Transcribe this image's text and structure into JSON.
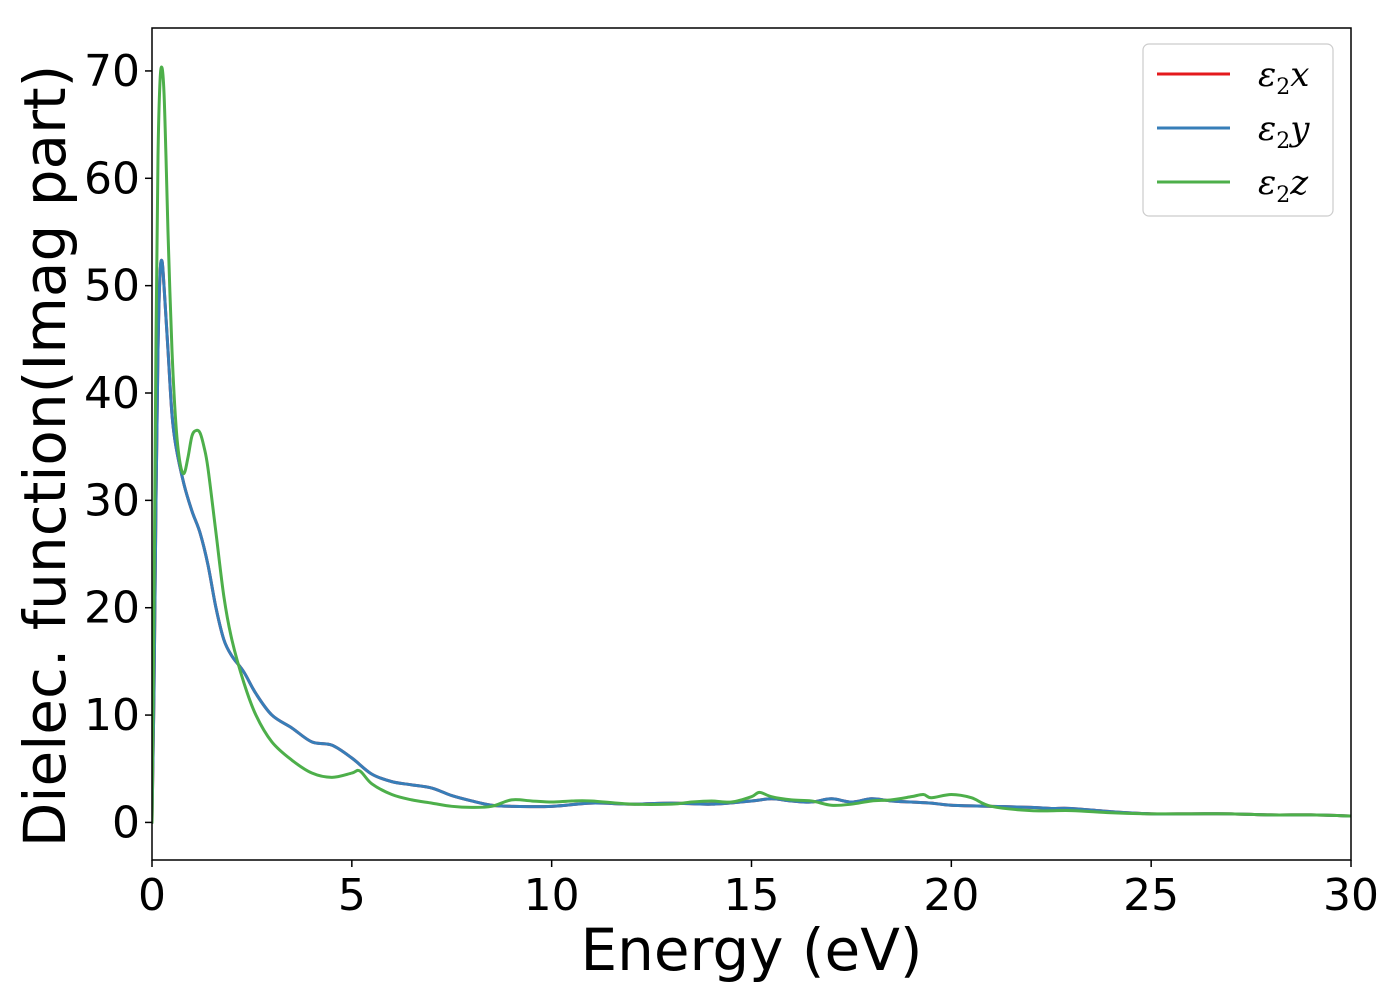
{
  "chart_data": {
    "type": "line",
    "title": "",
    "xlabel": "Energy (eV)",
    "ylabel": "Dielec. function(Imag part)",
    "xlim": [
      0,
      30
    ],
    "ylim": [
      -3.5,
      74
    ],
    "xticks": [
      0,
      5,
      10,
      15,
      20,
      25,
      30
    ],
    "yticks": [
      0,
      10,
      20,
      30,
      40,
      50,
      60,
      70
    ],
    "grid": false,
    "legend_position": "top-right",
    "series": [
      {
        "name": "ε2x",
        "legend": {
          "symbol": "ε",
          "sub": "2",
          "axis": "x"
        },
        "color": "#e41a1c",
        "x": [
          0,
          0.05,
          0.1,
          0.15,
          0.2,
          0.25,
          0.3,
          0.4,
          0.5,
          0.6,
          0.8,
          1.0,
          1.2,
          1.4,
          1.6,
          1.8,
          2.0,
          2.3,
          2.6,
          3.0,
          3.5,
          4.0,
          4.5,
          5.0,
          5.5,
          6.0,
          6.5,
          7.0,
          7.5,
          8.0,
          8.5,
          9.0,
          10.0,
          11.0,
          12.0,
          13.0,
          14.0,
          15.0,
          15.5,
          16.0,
          16.5,
          17.0,
          17.5,
          18.0,
          18.5,
          19.0,
          19.5,
          20.0,
          21.0,
          22.0,
          22.5,
          23.0,
          24.0,
          25.0,
          26.0,
          27.0,
          28.0,
          29.0,
          30.0
        ],
        "y": [
          0,
          12,
          30,
          44,
          51,
          52.3,
          50,
          44,
          38,
          35,
          31.5,
          29,
          27,
          24,
          20,
          17,
          15.5,
          14,
          12,
          10,
          8.8,
          7.5,
          7.2,
          6,
          4.5,
          3.8,
          3.5,
          3.2,
          2.5,
          2,
          1.6,
          1.5,
          1.5,
          1.8,
          1.7,
          1.8,
          1.7,
          2.0,
          2.2,
          2.0,
          1.9,
          2.2,
          1.9,
          2.2,
          2.0,
          1.9,
          1.8,
          1.6,
          1.5,
          1.4,
          1.3,
          1.3,
          1.0,
          0.8,
          0.8,
          0.8,
          0.7,
          0.7,
          0.6
        ]
      },
      {
        "name": "ε2y",
        "legend": {
          "symbol": "ε",
          "sub": "2",
          "axis": "y"
        },
        "color": "#377eb8",
        "x": [
          0,
          0.05,
          0.1,
          0.15,
          0.2,
          0.25,
          0.3,
          0.4,
          0.5,
          0.6,
          0.8,
          1.0,
          1.2,
          1.4,
          1.6,
          1.8,
          2.0,
          2.3,
          2.6,
          3.0,
          3.5,
          4.0,
          4.5,
          5.0,
          5.5,
          6.0,
          6.5,
          7.0,
          7.5,
          8.0,
          8.5,
          9.0,
          10.0,
          11.0,
          12.0,
          13.0,
          14.0,
          15.0,
          15.5,
          16.0,
          16.5,
          17.0,
          17.5,
          18.0,
          18.5,
          19.0,
          19.5,
          20.0,
          21.0,
          22.0,
          22.5,
          23.0,
          24.0,
          25.0,
          26.0,
          27.0,
          28.0,
          29.0,
          30.0
        ],
        "y": [
          0,
          12,
          30,
          44,
          51,
          52.3,
          50,
          44,
          38,
          35,
          31.5,
          29,
          27,
          24,
          20,
          17,
          15.5,
          14,
          12,
          10,
          8.8,
          7.5,
          7.2,
          6,
          4.5,
          3.8,
          3.5,
          3.2,
          2.5,
          2,
          1.6,
          1.5,
          1.5,
          1.8,
          1.7,
          1.8,
          1.7,
          2.0,
          2.2,
          2.0,
          1.9,
          2.2,
          1.9,
          2.2,
          2.0,
          1.9,
          1.8,
          1.6,
          1.5,
          1.4,
          1.3,
          1.3,
          1.0,
          0.8,
          0.8,
          0.8,
          0.7,
          0.7,
          0.6
        ]
      },
      {
        "name": "ε2z",
        "legend": {
          "symbol": "ε",
          "sub": "2",
          "axis": "z"
        },
        "color": "#4daf4a",
        "x": [
          0,
          0.05,
          0.1,
          0.15,
          0.2,
          0.25,
          0.3,
          0.35,
          0.4,
          0.5,
          0.6,
          0.7,
          0.8,
          0.9,
          1.0,
          1.1,
          1.2,
          1.3,
          1.4,
          1.6,
          1.8,
          2.0,
          2.3,
          2.6,
          3.0,
          3.5,
          4.0,
          4.5,
          5.0,
          5.2,
          5.5,
          6.0,
          6.5,
          7.0,
          7.5,
          8.0,
          8.5,
          9.0,
          9.5,
          10.0,
          10.5,
          11.0,
          12.0,
          13.0,
          13.5,
          14.0,
          14.5,
          15.0,
          15.2,
          15.5,
          16.0,
          16.5,
          17.0,
          17.5,
          18.0,
          18.5,
          19.0,
          19.3,
          19.5,
          20.0,
          20.5,
          21.0,
          22.0,
          23.0,
          24.0,
          25.0,
          26.0,
          27.0,
          28.0,
          29.0,
          30.0
        ],
        "y": [
          0,
          20,
          45,
          62,
          69,
          70.3,
          68,
          62,
          55,
          44,
          37,
          33.5,
          32.5,
          34,
          36,
          36.5,
          36.3,
          35,
          33,
          27,
          21,
          17,
          13,
          10,
          7.5,
          5.8,
          4.6,
          4.2,
          4.6,
          4.8,
          3.6,
          2.6,
          2.1,
          1.8,
          1.5,
          1.4,
          1.5,
          2.1,
          2.0,
          1.9,
          2.0,
          2.0,
          1.7,
          1.7,
          1.9,
          2.0,
          1.9,
          2.4,
          2.8,
          2.4,
          2.1,
          2.0,
          1.6,
          1.7,
          2.0,
          2.1,
          2.4,
          2.6,
          2.3,
          2.6,
          2.3,
          1.5,
          1.1,
          1.1,
          0.9,
          0.8,
          0.8,
          0.8,
          0.7,
          0.7,
          0.6
        ]
      }
    ]
  }
}
